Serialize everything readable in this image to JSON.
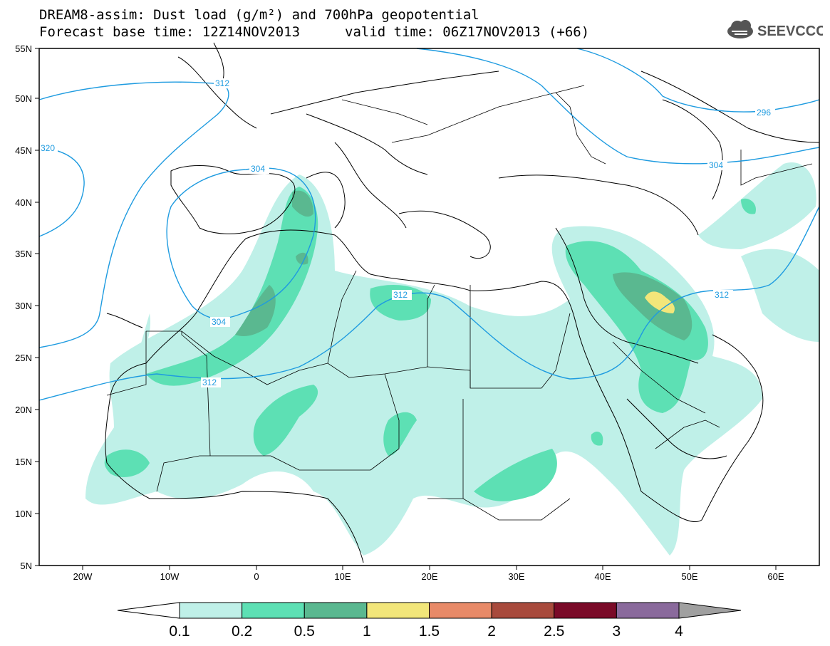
{
  "header": {
    "title_line1": "DREAM8-assim: Dust load (g/m²) and 700hPa geopotential",
    "title_line2_left": "Forecast base time: 12Z14NOV2013",
    "title_line2_right": "valid time: 06Z17NOV2013 (+66)",
    "logo_text": "SEEVCCC"
  },
  "map": {
    "lon_labels": [
      "20W",
      "10W",
      "0",
      "10E",
      "20E",
      "30E",
      "40E",
      "50E",
      "60E"
    ],
    "lat_labels": [
      "55N",
      "50N",
      "45N",
      "40N",
      "35N",
      "30N",
      "25N",
      "20N",
      "15N",
      "10N",
      "5N"
    ],
    "contour_labels": [
      "312",
      "320",
      "304",
      "296",
      "304",
      "304",
      "312",
      "312",
      "312"
    ],
    "contour_color": "#1e9be0"
  },
  "colorbar": {
    "labels": [
      "0.1",
      "0.2",
      "0.5",
      "1",
      "1.5",
      "2",
      "2.5",
      "3",
      "4"
    ],
    "colors": [
      "#bff0e8",
      "#5de0b4",
      "#5ab890",
      "#f2e67a",
      "#e88a68",
      "#a84a3c",
      "#7a0a28",
      "#8a6a9c"
    ],
    "arrow_colors": [
      "#ffffff",
      "#a0a0a0"
    ]
  }
}
